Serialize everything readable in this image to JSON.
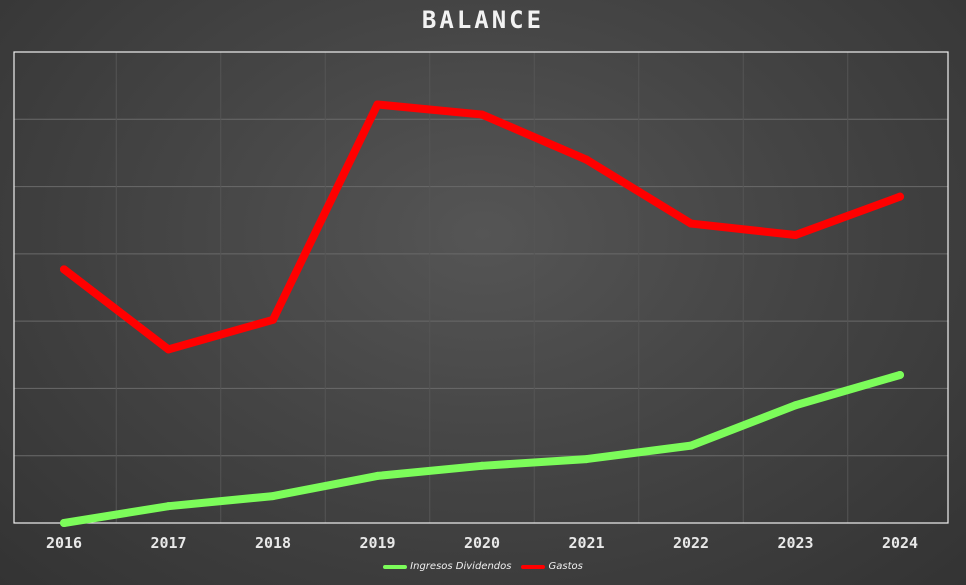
{
  "chart_data": {
    "type": "line",
    "title": "BALANCE",
    "xlabel": "",
    "ylabel": "",
    "x": [
      "2016",
      "2017",
      "2018",
      "2019",
      "2020",
      "2021",
      "2022",
      "2023",
      "2024"
    ],
    "ylim": [
      0,
      7
    ],
    "grid": true,
    "y_tick_labels_shown": false,
    "legend_position": "bottom",
    "series": [
      {
        "name": "Ingresos Dividendos",
        "color": "#7CFC5A",
        "values": [
          0.0,
          0.25,
          0.4,
          0.7,
          0.85,
          0.95,
          1.15,
          1.75,
          2.2
        ]
      },
      {
        "name": "Gastos",
        "color": "#FF0000",
        "values": [
          3.77,
          2.58,
          3.02,
          6.22,
          6.07,
          5.4,
          4.45,
          4.28,
          4.85
        ]
      }
    ]
  }
}
